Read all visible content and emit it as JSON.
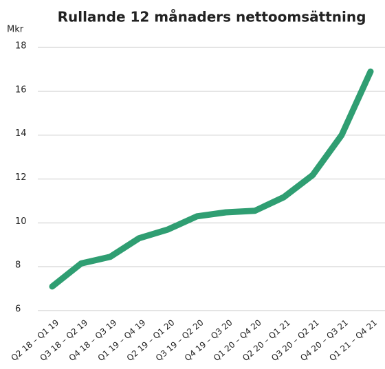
{
  "chart_data": {
    "type": "line",
    "title": "Rullande 12 månaders nettoomsättning",
    "y_label": "Mkr",
    "categories": [
      "Q2 18 – Q1 19",
      "Q3 18 – Q2 19",
      "Q4 18 – Q3 19",
      "Q1 19 – Q4 19",
      "Q2 19 – Q1 20",
      "Q3 19 – Q2 20",
      "Q4 19 – Q3 20",
      "Q1 20 – Q4 20",
      "Q2 20 – Q1 21",
      "Q3 20 – Q2 21",
      "Q4 20 – Q3 21",
      "Q1 21 – Q4 21"
    ],
    "values": [
      7.1,
      8.15,
      8.45,
      9.3,
      9.7,
      10.3,
      10.48,
      10.55,
      11.17,
      12.18,
      14.0,
      16.9
    ],
    "color": "#2f9e72",
    "ylim": [
      6,
      18
    ],
    "yticks": [
      6,
      8,
      10,
      12,
      14,
      16,
      18
    ],
    "grid": true
  }
}
